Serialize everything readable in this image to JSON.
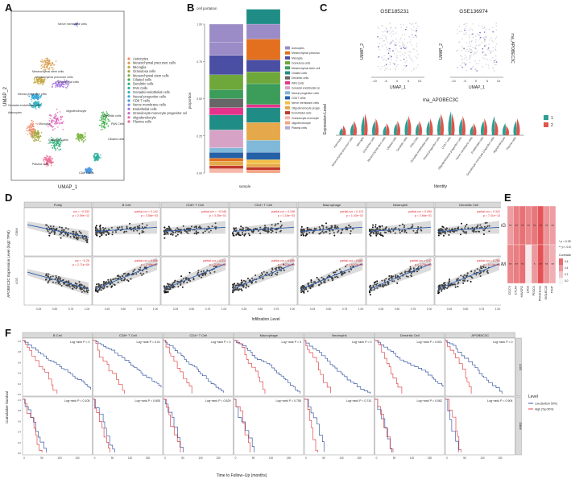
{
  "panel_letters": [
    "A",
    "B",
    "C",
    "D",
    "E",
    "F"
  ],
  "colors": {
    "ggplot_red": "#e0554b",
    "ggplot_teal": "#2c9f94",
    "corr_low": "#f7f4f8",
    "corr_high": "#e34a4e",
    "surv_low": "#3b5ba5",
    "surv_high": "#e04848"
  },
  "chart_data": [
    {
      "id": "A",
      "type": "scatter",
      "xlabel": "UMAP_1",
      "ylabel": "UMAP_2",
      "legend_position": "right",
      "cell_types": [
        {
          "name": "Astrocytes",
          "color": "#f08a6a"
        },
        {
          "name": "Mesenchymal precursor cells",
          "color": "#d89b4a"
        },
        {
          "name": "Microglia",
          "color": "#c2a53a"
        },
        {
          "name": "Granulosa cells",
          "color": "#a3a83a"
        },
        {
          "name": "Mesenchymal stem cells",
          "color": "#7ab23e"
        },
        {
          "name": "Ciliated cells",
          "color": "#3fb04a"
        },
        {
          "name": "Dendritic cells",
          "color": "#2eaf79"
        },
        {
          "name": "PAN Cells",
          "color": "#2db3a0"
        },
        {
          "name": "Gonadal endothelial cells",
          "color": "#2cb3c0"
        },
        {
          "name": "Neural progenitor cells",
          "color": "#2fa8d8"
        },
        {
          "name": "CD8 T cells",
          "color": "#4a96e0"
        },
        {
          "name": "Nerve membrane cells",
          "color": "#7b84e3"
        },
        {
          "name": "Endothelial cells",
          "color": "#a374e0"
        },
        {
          "name": "Granulocyte-monocyte progenitor cells",
          "color": "#c968d8"
        },
        {
          "name": "oligodendrocyte",
          "color": "#e264b8"
        },
        {
          "name": "Plasma cells",
          "color": "#ec6a8f"
        }
      ],
      "cluster_labels": [
        "Nerve membrane cells",
        "Mesenchymal stem cells",
        "Mesenchymal precursor cells",
        "Endothelial cells",
        "Neural progenitor cells",
        "Gonadal endothelial cells",
        "Astrocytes",
        "Microglia",
        "oligodendrocyte",
        "Granulosa cells",
        "Dendritic cells",
        "Ciliated cells",
        "Plasma cells",
        "PAN Cells",
        "CD8 T cells"
      ]
    },
    {
      "id": "B",
      "type": "bar",
      "stacked": true,
      "title": "cell portation",
      "ylabel": "proportion",
      "xlabel": "sample",
      "yticks": [
        "0.00",
        "0.25",
        "0.50",
        "0.75",
        "1.00"
      ],
      "legend_position": "right",
      "legend": [
        {
          "name": "Astrocytes",
          "color": "#9b8cc7"
        },
        {
          "name": "Mesenchymal precursor cells",
          "color": "#e2701f"
        },
        {
          "name": "Microglia",
          "color": "#4a4fa3"
        },
        {
          "name": "Granulosa cells",
          "color": "#6fa83a"
        },
        {
          "name": "Mesenchymal stem cells",
          "color": "#3c9d5a"
        },
        {
          "name": "Ciliated cells",
          "color": "#1f8d86"
        },
        {
          "name": "Dendritic cells",
          "color": "#666666"
        },
        {
          "name": "PAN Cells",
          "color": "#e5338c"
        },
        {
          "name": "Gonadal endothelial cells",
          "color": "#d6a3c6"
        },
        {
          "name": "Neural progenitor cells",
          "color": "#7fb8d8"
        },
        {
          "name": "CD8 T cells",
          "color": "#2461a6"
        },
        {
          "name": "Nerve membrane cells",
          "color": "#f2c14b"
        },
        {
          "name": "Oligodendrocyte progenitor cells",
          "color": "#e5a84a"
        },
        {
          "name": "Endothelial cells",
          "color": "#c0392b"
        },
        {
          "name": "Granulocyte-monocyte progenitor cells",
          "color": "#f7b6a8"
        },
        {
          "name": "oligodendrocyte",
          "color": "#f4a582"
        },
        {
          "name": "Plasma cells",
          "color": "#b2abd2"
        }
      ],
      "bars": [
        [
          0.03,
          0.02,
          0.03,
          0.02,
          0.04,
          0.03,
          0.12,
          0.1,
          0.05,
          0.06,
          0.06,
          0.1,
          0.13,
          0.09,
          0.12
        ],
        [
          0.02,
          0.02,
          0.02,
          0.03,
          0.05,
          0.08,
          0.12,
          0.1,
          0.02,
          0.14,
          0.08,
          0.08,
          0.14,
          0.1,
          0.1
        ]
      ],
      "bar_colors": [
        [
          "#f7b6a8",
          "#c0392b",
          "#e5a84a",
          "#e2701f",
          "#2461a6",
          "#7fb8d8",
          "#d6a3c6",
          "#1f8d86",
          "#e5338c",
          "#666666",
          "#3c9d5a",
          "#6fa83a",
          "#4a4fa3",
          "#9b8cc7",
          "#9b8cc7"
        ],
        [
          "#f4a582",
          "#c0392b",
          "#e5a84a",
          "#f2c14b",
          "#2461a6",
          "#7fb8d8",
          "#e5a84a",
          "#1f8d86",
          "#e5338c",
          "#3c9d5a",
          "#6fa83a",
          "#4a4fa3",
          "#e2701f",
          "#9b8cc7",
          "#1f8d86"
        ]
      ]
    },
    {
      "id": "C-umap",
      "type": "scatter",
      "plots": [
        "GSE185231",
        "GSE136974"
      ],
      "xlabel": "UMAP_1",
      "ylabel": "UMAP_2",
      "colorbar_label": "rna_APOBEC3C",
      "xticks": [
        "-10",
        "-5",
        "0",
        "5",
        "10"
      ]
    },
    {
      "id": "C-violin",
      "type": "violin",
      "title": "rna_APOBEC3C",
      "ylabel": "Expression Level",
      "xlabel": "Identity",
      "legend": [
        "1",
        "2"
      ],
      "categories": [
        "Astrocytes",
        "Mesenchymal precursor cells",
        "Microglia",
        "Granulosa cells",
        "Mesenchymal stem cells",
        "Ciliated cells",
        "Dendritic cells",
        "PAN Cells",
        "Gonadal endothelial cells",
        "Neural progenitor cells",
        "CD8 T cells",
        "Oligodendrocyte progenitor cells",
        "Nerve membrane cells",
        "Endothelial cells",
        "Granulocyte-monocyte progenitor cells",
        "oligodendrocyte",
        "Plasma cells"
      ],
      "heights_1": [
        0.3,
        0.5,
        0.8,
        0.6,
        0.4,
        0.5,
        0.7,
        0.5,
        0.6,
        0.8,
        1.0,
        0.7,
        0.4,
        0.6,
        0.8,
        0.5,
        0.6
      ],
      "heights_2": [
        0.4,
        0.6,
        0.9,
        0.7,
        0.5,
        0.6,
        0.8,
        0.6,
        0.7,
        0.9,
        0.9,
        0.8,
        0.5,
        0.7,
        0.6,
        0.4,
        0.7
      ]
    },
    {
      "id": "D",
      "type": "scatter",
      "ylabel": "APOBEC3C Expression Level (log2 TPM)",
      "xlabel": "Infiltration Level",
      "columns": [
        "Purity",
        "B Cell",
        "CD8+ T Cell",
        "CD4+ T Cell",
        "Macrophage",
        "Neutrophil",
        "Dendritic Cell"
      ],
      "rows": [
        "GBM",
        "LGG"
      ],
      "cor_texts": [
        [
          "cor = −0.333\np = 2.09e−12",
          "partial.cor = 0.142\np = 3.56e−03",
          "partial.cor = −0.048\np = 3.25e−01",
          "partial.cor = 0.158\np = 1.16e−03",
          "partial.cor = 0.113\np = 1.43e−02",
          "partial.cor = 0.050\np = 2.66e−01",
          "partial.cor = 0.341\np = 7.41e−13"
        ],
        [
          "cor = −0.26\np = 2.71e−09",
          "partial.cor = 0.596\np = 2.96e−47",
          "partial.cor = 0.312\np = 2.86e−12",
          "partial.cor = 0.659\np = 1.22e−59",
          "partial.cor = 0.662\np = 6.02e−59",
          "partial.cor = 0.47\np = 2.70e−63",
          "partial.cor = 0.784\np = 5.14e−94"
        ]
      ],
      "xticks": [
        "0.25",
        "0.50",
        "0.75",
        "1.00"
      ]
    },
    {
      "id": "E",
      "type": "heatmap",
      "rows": [
        "LGG",
        "GBM"
      ],
      "cols": [
        "CD274",
        "CTLA4",
        "HAVCR2",
        "LAG3",
        "PDCD1",
        "PDCD1LG2",
        "SIGLEC15",
        "TIGIT"
      ],
      "stars": [
        [
          "**",
          "**",
          "**",
          "**",
          "**",
          "**",
          "**",
          "**"
        ],
        [
          "**",
          "**",
          "**",
          "",
          "*",
          "**",
          "**",
          "**"
        ]
      ],
      "values": [
        [
          0.38,
          0.52,
          0.58,
          0.48,
          0.55,
          0.7,
          0.42,
          0.38
        ],
        [
          0.48,
          0.52,
          0.58,
          0.05,
          0.4,
          0.72,
          0.42,
          0.3
        ]
      ],
      "legend_title": "Correlation",
      "legend_ticks": [
        "0.6",
        "0.4",
        "0.2",
        "0.0"
      ],
      "sig_notes": [
        "* p < 0.05",
        "** p < 0.01"
      ]
    },
    {
      "id": "F",
      "type": "line",
      "ylabel": "Cumulative Survival",
      "xlabel": "Time to Follow−Up (months)",
      "columns": [
        "B Cell",
        "CD8+ T Cell",
        "CD4+ T Cell",
        "Macrophage",
        "Neutrophil",
        "Dendritic Cell",
        "APOBEC3C"
      ],
      "rows": [
        "LGG",
        "GBM"
      ],
      "pvalues": [
        [
          "Log−rank P = 0",
          "Log−rank P = 0.01",
          "Log−rank P = 0",
          "Log−rank P = 0",
          "Log−rank P = 0",
          "Log−rank P = 0.001",
          "Log−rank P = 0"
        ],
        [
          "Log−rank P = 0.105",
          "Log−rank P = 0.805",
          "Log−rank P = 0.629",
          "Log−rank P = 0.755",
          "Log−rank P = 0.741",
          "Log−rank P = 0.062",
          "Log−rank P = 0.904"
        ]
      ],
      "legend_title": "Level",
      "legend": [
        "Low (Bottom 50%)",
        "High (Top 50%)"
      ],
      "xticks": [
        "0",
        "50",
        "100",
        "150"
      ],
      "yticks": [
        "0.0",
        "0.2",
        "0.4",
        "0.6",
        "0.8",
        "1.0"
      ]
    }
  ]
}
